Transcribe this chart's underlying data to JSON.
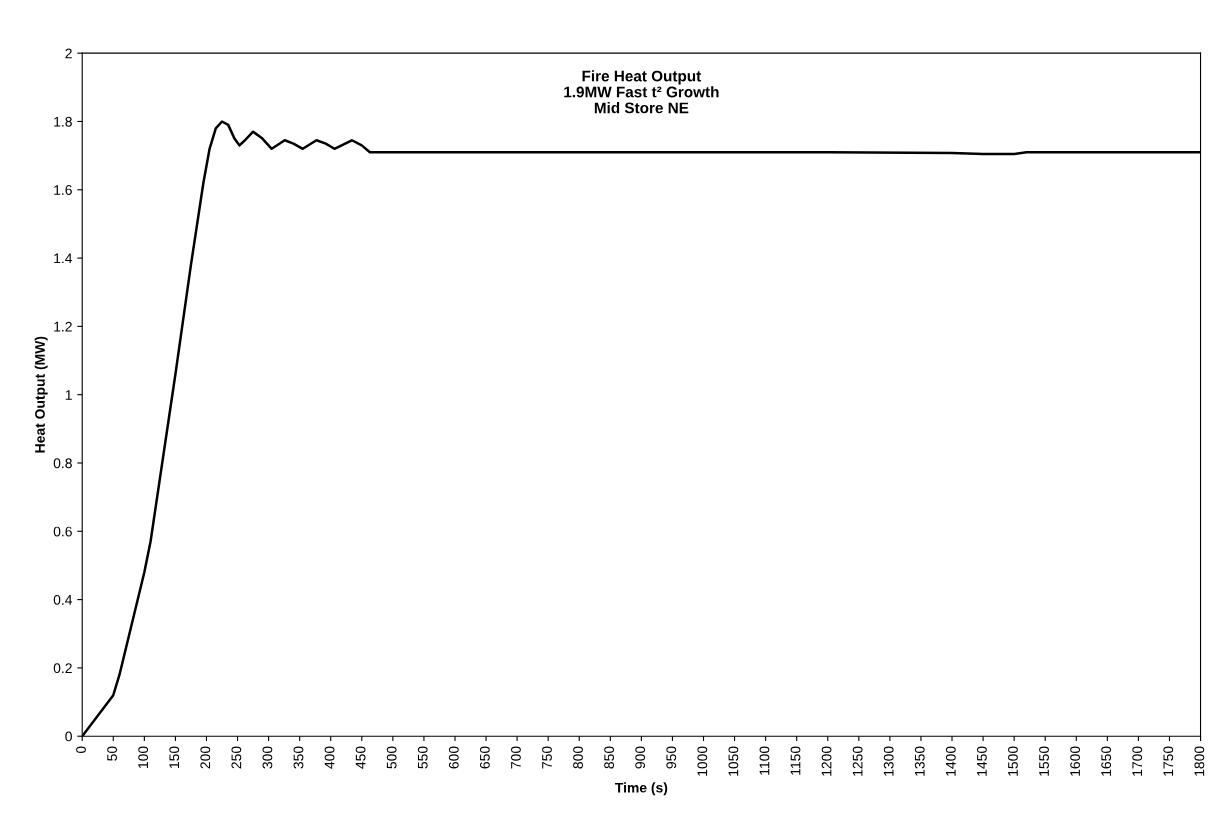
{
  "chart_data": {
    "type": "line",
    "title": "Fire Heat Output\n1.9MW Fast t² Growth\nMid Store NE",
    "xlabel": "Time (s)",
    "ylabel": "Heat Output (MW)",
    "series": [
      {
        "color": "#000000",
        "x": [
          0,
          50,
          60,
          100,
          110,
          150,
          175,
          195,
          205,
          215,
          225,
          235,
          245,
          253,
          262,
          275,
          290,
          305,
          326,
          340,
          355,
          377,
          392,
          406,
          434,
          450,
          463,
          600,
          800,
          1000,
          1200,
          1400,
          1450,
          1500,
          1520,
          1800
        ],
        "values": [
          0,
          0.12,
          0.18,
          0.48,
          0.57,
          1.06,
          1.38,
          1.62,
          1.72,
          1.78,
          1.8,
          1.79,
          1.75,
          1.73,
          1.745,
          1.77,
          1.75,
          1.72,
          1.745,
          1.735,
          1.72,
          1.745,
          1.735,
          1.72,
          1.745,
          1.73,
          1.71,
          1.71,
          1.71,
          1.71,
          1.71,
          1.708,
          1.705,
          1.705,
          1.71,
          1.71
        ]
      }
    ],
    "xlim": [
      0,
      1800
    ],
    "xticks": [
      0,
      50,
      100,
      150,
      200,
      250,
      300,
      350,
      400,
      450,
      500,
      550,
      600,
      650,
      700,
      750,
      800,
      850,
      900,
      950,
      1000,
      1050,
      1100,
      1150,
      1200,
      1250,
      1300,
      1350,
      1400,
      1450,
      1500,
      1550,
      1600,
      1650,
      1700,
      1750,
      1800
    ],
    "ylim": [
      0,
      2
    ],
    "yticks": [
      0,
      0.2,
      0.4,
      0.6,
      0.8,
      1,
      1.2,
      1.4,
      1.6,
      1.8,
      2
    ],
    "grid": false,
    "legend": false,
    "marker": "none",
    "line_style": "solid"
  }
}
